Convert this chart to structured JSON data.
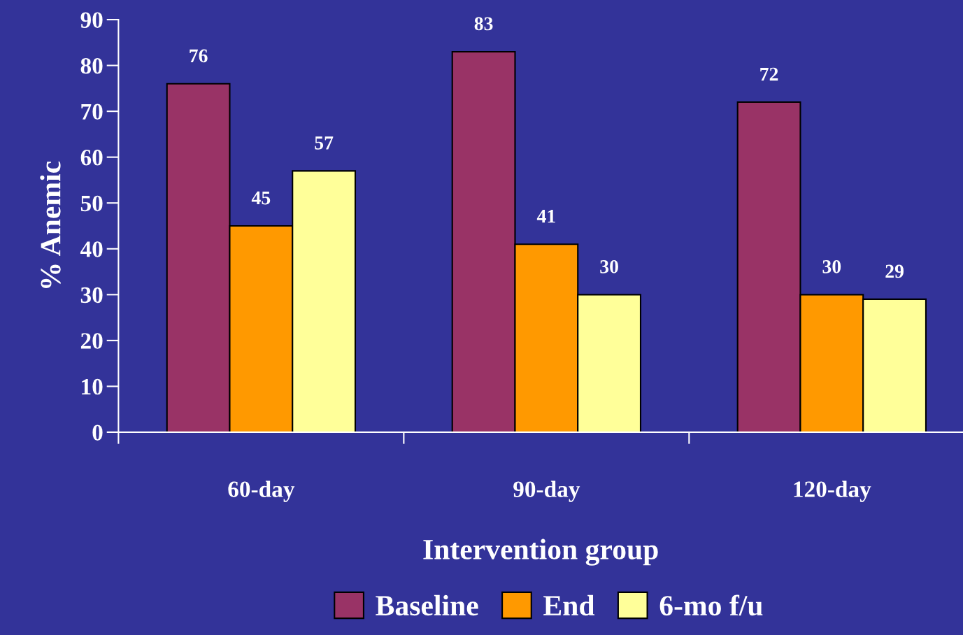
{
  "chart_data": {
    "type": "bar",
    "xlabel": "Intervention group",
    "ylabel": "% Anemic",
    "categories": [
      "60-day",
      "90-day",
      "120-day"
    ],
    "series": [
      {
        "name": "Baseline",
        "color": "#993366",
        "values": [
          76,
          83,
          72
        ]
      },
      {
        "name": "End",
        "color": "#ff9900",
        "values": [
          45,
          41,
          30
        ]
      },
      {
        "name": "6-mo f/u",
        "color": "#ffff99",
        "values": [
          57,
          30,
          29
        ]
      }
    ],
    "ylim": [
      0,
      90
    ],
    "yticks": [
      0,
      10,
      20,
      30,
      40,
      50,
      60,
      70,
      80,
      90
    ],
    "grid": false,
    "legend": "bottom",
    "data_labels": true
  }
}
